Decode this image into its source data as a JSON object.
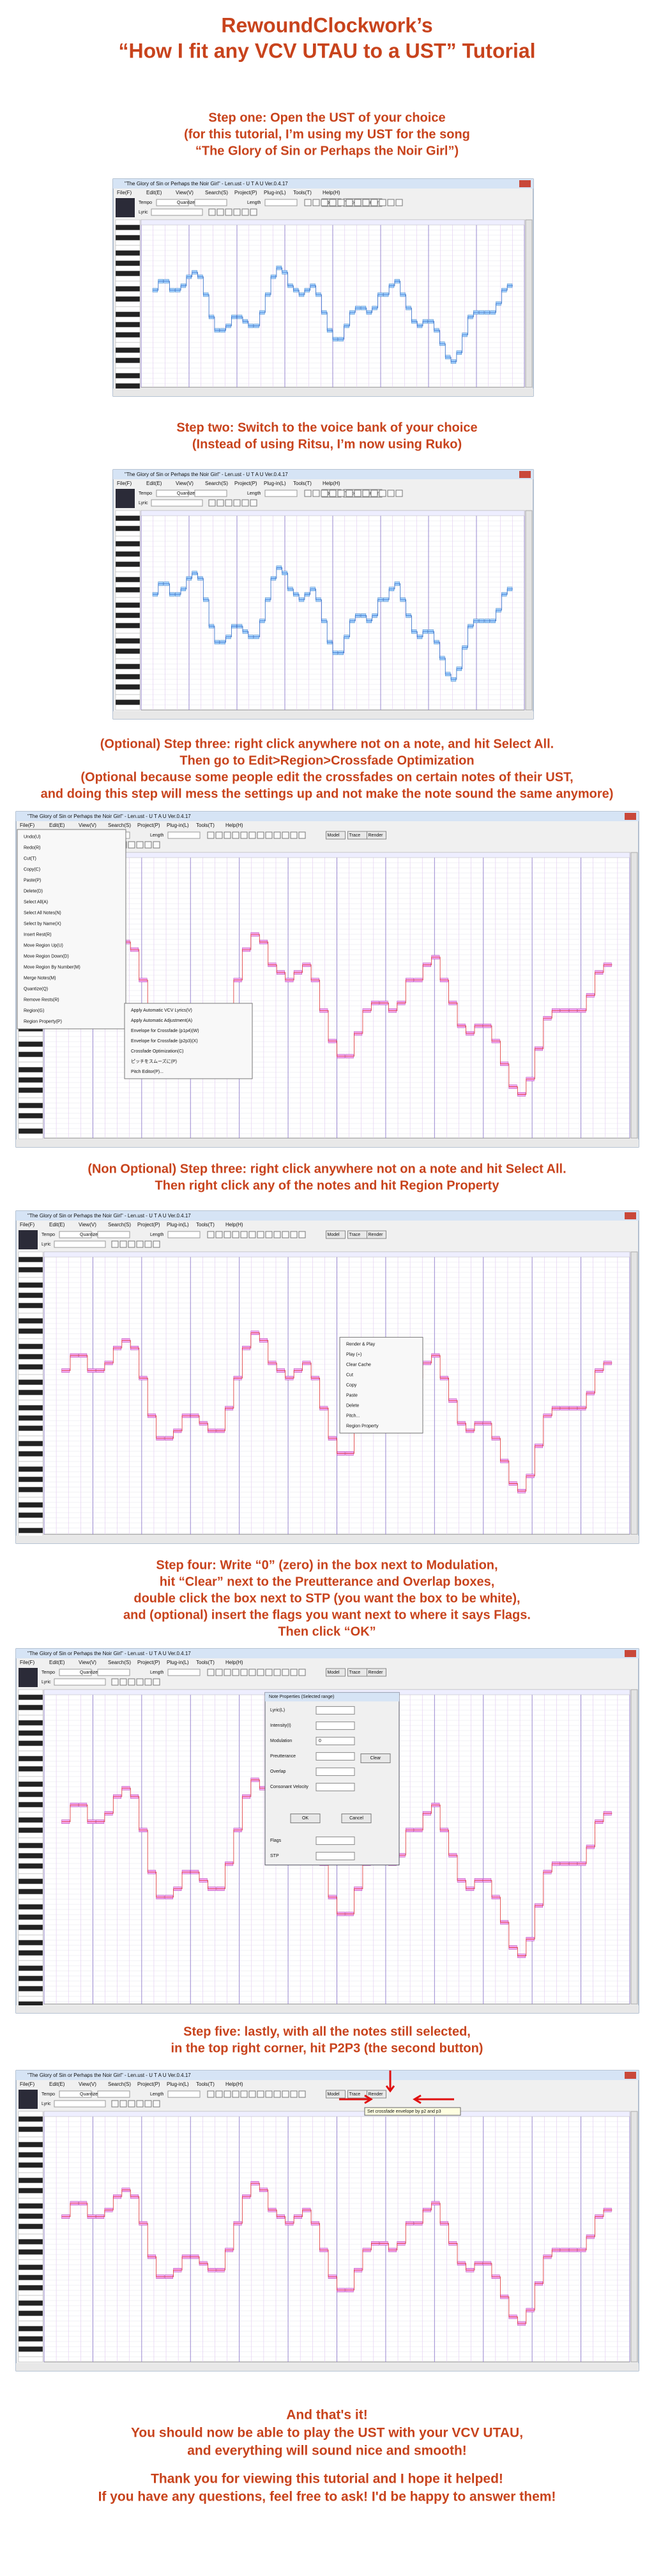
{
  "header": {
    "title": [
      "RewoundClockwork’s",
      "“How I fit any VCV UTAU to a UST” Tutorial"
    ]
  },
  "app": {
    "window_title": "\"The Glory of Sin or Perhaps the Noir Girl\" - Len.ust - U T A U Ver.0.4.17",
    "menu": [
      "File(F)",
      "Edit(E)",
      "View(V)",
      "Search(S)",
      "Project(P)",
      "Plug-in(L)",
      "Tools(T)",
      "Help(H)"
    ],
    "toolbar": [
      "Tempo",
      "Quantize",
      "Length",
      "Model",
      "Trace",
      "Render"
    ],
    "lyric": "Lyric",
    "edit_menu": [
      "Undo(U)",
      "Redo(R)",
      "Cut(T)",
      "Copy(C)",
      "Paste(P)",
      "Delete(D)",
      "Select All(A)",
      "Select All Notes(N)",
      "Select by Name(X)",
      "Insert Rest(R)",
      "Move Region Up(U)",
      "Move Region Down(D)",
      "Move Region By Number(M)",
      "Merge Notes(M)",
      "Quantize(Q)",
      "Remove Rests(R)",
      "Region(G)",
      "Region Property(P)"
    ],
    "region_menu": [
      "Apply Automatic VCV Lyrics(V)",
      "Apply Automatic Adjustment(A)",
      "Envelope for Crossfade (p1p4)(W)",
      "Envelope for Crossfade (p2p3)(X)",
      "Crossfade Optimization(C)",
      "ピッチをスムーズに(P)",
      "Pitch Editor(P)..."
    ],
    "note_menu": [
      "Render & Play",
      "Play (+)",
      "Clear Cache",
      "Cut",
      "Copy",
      "Paste",
      "Delete",
      "Pitch...",
      "Region Property"
    ],
    "dialog": {
      "title": "Note Properties (Selected range)",
      "fields": [
        "Lyric(L)",
        "Intensity(I)",
        "Modulation",
        "Preutterance",
        "Overlap",
        "Consonant Velocity",
        "Flags",
        "STP"
      ],
      "modulation": "0",
      "buttons": [
        "Clear",
        "OK",
        "Cancel"
      ]
    },
    "tooltip": "Set crossfade envelope by p2 and p3"
  },
  "sections": [
    {
      "text": [
        "Step one: Open the UST of your choice",
        "(for this tutorial, I’m using my UST for the song",
        "“The Glory of Sin or Perhaps the Noir Girl”)"
      ]
    },
    {
      "text": [
        "Step two: Switch to the voice bank of your choice",
        "(Instead of using Ritsu, I’m now using Ruko)"
      ]
    },
    {
      "text": [
        "(Optional) Step three: right click anywhere not on a note, and hit Select All.",
        "Then go to Edit>Region>Crossfade Optimization",
        "(Optional because some people edit the crossfades on certain notes of their UST,",
        "and doing this step will mess the settings up and not make the note sound the same anymore)"
      ]
    },
    {
      "text": [
        "(Non Optional) Step three: right click anywhere not on a note and hit Select All.",
        "Then right click any of the notes and hit Region Property"
      ]
    },
    {
      "text": [
        "Step four: Write “0” (zero) in the box next to Modulation,",
        "hit “Clear” next to the Preutterance and Overlap boxes,",
        "double click the box next to STP (you want the box to be white),",
        "and (optional) insert the flags you want next to where it says Flags.",
        "Then click “OK”"
      ]
    },
    {
      "text": [
        "Step five: lastly, with all the notes still selected,",
        "in the top right corner, hit P2P3 (the second button)"
      ]
    }
  ],
  "footer": [
    [
      "And that's it!",
      "You should now be able to play the UST with your VCV UTAU,",
      "and everything will sound nice and smooth!"
    ],
    [
      "Thank you for viewing this tutorial and I hope it helped!",
      "If you have any questions, feel free to ask! I'd be happy to answer them!"
    ]
  ]
}
